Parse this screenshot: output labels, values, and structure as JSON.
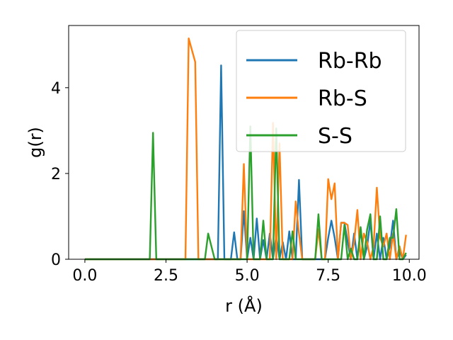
{
  "chart_data": {
    "type": "line",
    "title": "",
    "xlabel": "r (Å)",
    "ylabel": "g(r)",
    "xlim": [
      -0.5,
      10.3
    ],
    "ylim": [
      0,
      5.45
    ],
    "xticks": [
      0.0,
      2.5,
      5.0,
      7.5,
      10.0
    ],
    "xtick_labels": [
      "0.0",
      "2.5",
      "5.0",
      "7.5",
      "10.0"
    ],
    "yticks": [
      0,
      2,
      4
    ],
    "ytick_labels": [
      "0",
      "2",
      "4"
    ],
    "grid": false,
    "legend_position": "top-right",
    "series": [
      {
        "name": "Rb-Rb",
        "color": "#1f77b4",
        "x": [
          0,
          4.1,
          4.2,
          4.3,
          4.5,
          4.6,
          4.7,
          4.8,
          4.9,
          5.0,
          5.1,
          5.2,
          5.3,
          5.4,
          5.5,
          5.6,
          5.7,
          5.8,
          5.9,
          6.0,
          6.1,
          6.2,
          6.3,
          6.4,
          6.5,
          6.6,
          6.7,
          6.8,
          7.4,
          7.5,
          7.6,
          7.7,
          7.8,
          7.9,
          8.0,
          8.1,
          8.2,
          8.3,
          8.4,
          8.5,
          8.6,
          8.7,
          8.8,
          8.9,
          9.0,
          9.1,
          9.2,
          9.3,
          9.4,
          9.5,
          9.6,
          9.7,
          9.8,
          9.9
        ],
        "y": [
          0,
          0,
          4.52,
          0,
          0,
          0.63,
          0,
          0,
          1.12,
          0,
          0.5,
          0,
          0.95,
          0,
          0.45,
          0,
          0.6,
          0,
          0.55,
          0,
          0.4,
          0,
          0.65,
          0,
          0,
          1.85,
          0,
          0,
          0,
          0.5,
          0.9,
          0.5,
          0,
          0.85,
          0.85,
          0.4,
          0,
          0.6,
          0,
          0.7,
          0,
          0.3,
          0.9,
          0,
          0.6,
          0,
          0.5,
          0,
          0.3,
          0.9,
          0,
          0.2,
          0,
          0.1
        ]
      },
      {
        "name": "Rb-S",
        "color": "#ff7f0e",
        "x": [
          0,
          3.1,
          3.2,
          3.4,
          3.5,
          4.8,
          4.9,
          5.0,
          5.1,
          5.7,
          5.8,
          5.9,
          6.0,
          6.1,
          6.2,
          6.3,
          6.4,
          6.5,
          6.6,
          6.7,
          6.8,
          6.9,
          7.0,
          7.1,
          7.2,
          7.3,
          7.4,
          7.5,
          7.6,
          7.7,
          7.8,
          7.9,
          8.0,
          8.1,
          8.2,
          8.3,
          8.4,
          8.5,
          8.6,
          8.7,
          8.8,
          8.9,
          9.0,
          9.1,
          9.2,
          9.3,
          9.4,
          9.5,
          9.6,
          9.7,
          9.8,
          9.9
        ],
        "y": [
          0,
          0,
          5.15,
          4.6,
          0,
          0,
          2.22,
          0,
          0,
          0,
          3.18,
          0,
          2.7,
          0,
          0,
          0,
          0,
          1.35,
          0.6,
          0,
          0,
          0,
          0,
          0,
          0.7,
          0,
          0,
          1.87,
          1.4,
          1.77,
          0,
          0.85,
          0.85,
          0.8,
          0,
          0.4,
          1.15,
          0,
          0.6,
          0.4,
          0,
          0.3,
          1.67,
          0.5,
          0.3,
          0.6,
          0,
          0.6,
          0,
          0.3,
          0,
          0.57
        ]
      },
      {
        "name": "S-S",
        "color": "#2ca02c",
        "x": [
          0,
          2.0,
          2.1,
          2.2,
          3.7,
          3.8,
          4.0,
          5.0,
          5.1,
          5.2,
          5.4,
          5.5,
          5.6,
          5.8,
          5.9,
          6.0,
          6.2,
          6.3,
          6.4,
          6.5,
          7.1,
          7.2,
          7.3,
          7.9,
          8.0,
          8.1,
          8.2,
          8.3,
          8.4,
          8.5,
          8.6,
          8.7,
          8.8,
          8.9,
          9.0,
          9.1,
          9.2,
          9.3,
          9.4,
          9.5,
          9.6,
          9.7,
          9.8,
          9.9
        ],
        "y": [
          0,
          0,
          2.95,
          0,
          0,
          0.6,
          0,
          0,
          3.1,
          0,
          0,
          0.9,
          0,
          0,
          3.05,
          0,
          0,
          0,
          0.65,
          0,
          0,
          1.05,
          0,
          0,
          0.8,
          0,
          0.25,
          0,
          0,
          0.75,
          0,
          0.7,
          1.05,
          0,
          0,
          1.0,
          0,
          0,
          0.5,
          0.5,
          1.17,
          0,
          0,
          0.15
        ]
      }
    ]
  }
}
